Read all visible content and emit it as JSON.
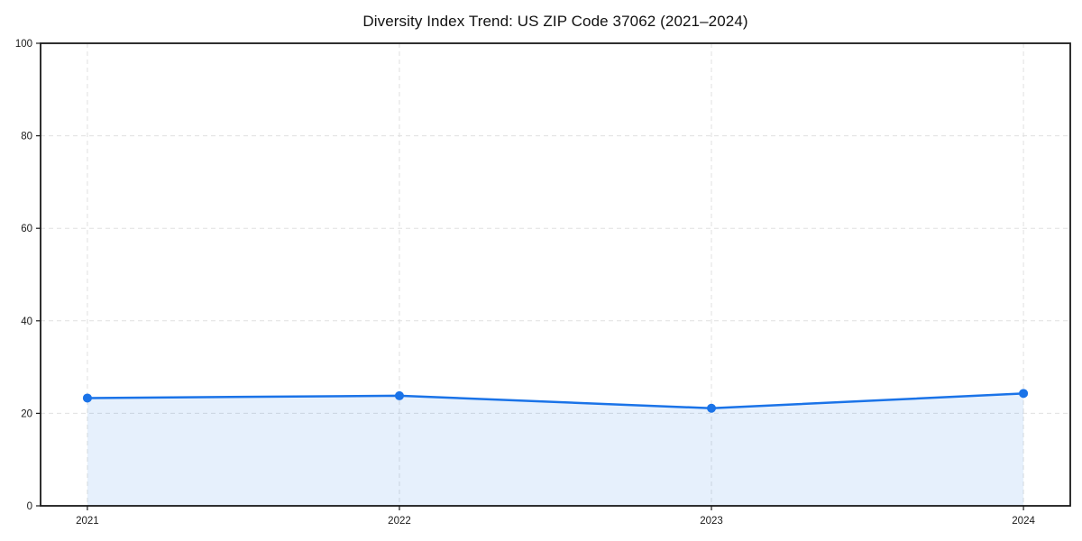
{
  "title": "Diversity Index Trend: US ZIP Code 37062 (2021–2024)",
  "chart_data": {
    "type": "area",
    "title": "Diversity Index Trend: US ZIP Code 37062 (2021–2024)",
    "categories": [
      "2021",
      "2022",
      "2023",
      "2024"
    ],
    "x": [
      2021,
      2022,
      2023,
      2024
    ],
    "series": [
      {
        "name": "Diversity Index",
        "values": [
          23.3,
          23.8,
          21.1,
          24.3
        ]
      }
    ],
    "xlabel": "",
    "ylabel": "",
    "ylim": [
      0,
      100
    ],
    "yticks": [
      0,
      20,
      40,
      60,
      80,
      100
    ],
    "x_margin_fraction": 0.05,
    "grid": true,
    "grid_style": "dashed",
    "legend": "none",
    "colors": {
      "line": "#1a73e8",
      "marker": "#1a73e8",
      "fill": "rgba(26, 115, 232, 0.11)",
      "grid": "#e0e0e0",
      "spine": "#1a1a1a",
      "tick_text": "#1a1a1a"
    }
  }
}
